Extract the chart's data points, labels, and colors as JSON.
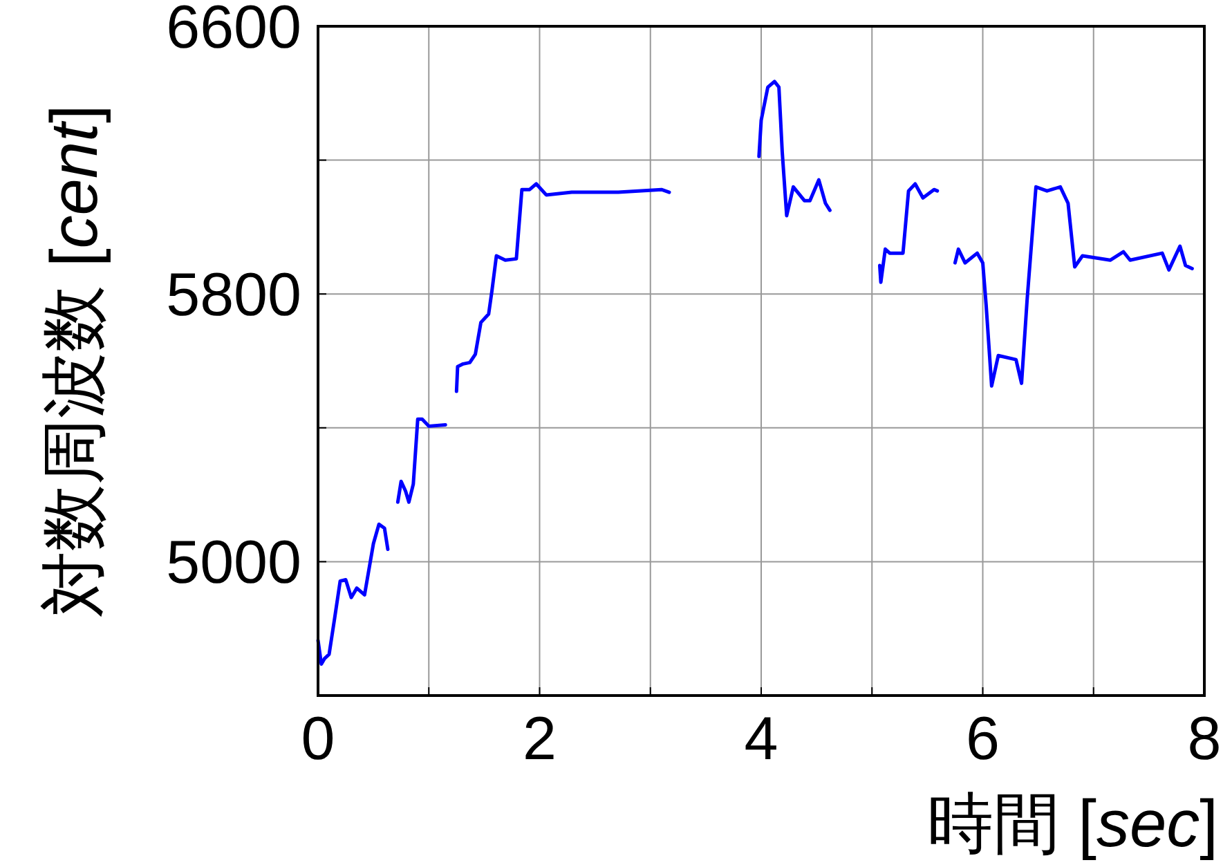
{
  "chart_data": {
    "type": "line",
    "xlabel": "時間 [sec]",
    "ylabel": "対数周波数 [cent]",
    "xlim": [
      0,
      8
    ],
    "ylim": [
      4600,
      6600
    ],
    "xticks": [
      0,
      {
        "value": 1,
        "label": null
      },
      2,
      {
        "value": 3,
        "label": null
      },
      4,
      {
        "value": 5,
        "label": null
      },
      6,
      {
        "value": 7,
        "label": null
      },
      8
    ],
    "yticks": [
      {
        "value": 5000,
        "label": "5000"
      },
      {
        "value": 5400,
        "label": null
      },
      {
        "value": 5800,
        "label": "5800"
      },
      {
        "value": 6200,
        "label": null
      },
      {
        "value": 6600,
        "label": "6600"
      }
    ],
    "grid": true,
    "marker": "none",
    "line_style": "solid",
    "series": [
      {
        "color": "#0000ff",
        "x": [
          0.0,
          0.03,
          0.06,
          0.1,
          0.15,
          0.2,
          0.25,
          0.3,
          0.35,
          0.42,
          0.5,
          0.55,
          0.6,
          0.63,
          0.67,
          0.72,
          0.75,
          0.79,
          0.82,
          0.86,
          0.9,
          0.94,
          1.0,
          1.15,
          1.2,
          1.25,
          1.26,
          1.31,
          1.37,
          1.42,
          1.47,
          1.54,
          1.57,
          1.61,
          1.69,
          1.79,
          1.81,
          1.84,
          1.91,
          1.97,
          2.06,
          2.29,
          2.71,
          3.1,
          3.17,
          3.5,
          3.98,
          4.0,
          4.06,
          4.12,
          4.16,
          4.19,
          4.23,
          4.29,
          4.39,
          4.44,
          4.52,
          4.58,
          4.62,
          4.8,
          5.07,
          5.08,
          5.12,
          5.16,
          5.28,
          5.33,
          5.39,
          5.46,
          5.56,
          5.59,
          5.67,
          5.75,
          5.78,
          5.84,
          5.95,
          6.0,
          6.03,
          6.08,
          6.14,
          6.3,
          6.35,
          6.4,
          6.48,
          6.58,
          6.7,
          6.77,
          6.83,
          6.9,
          7.15,
          7.27,
          7.33,
          7.62,
          7.68,
          7.78,
          7.83,
          7.89
        ],
        "values": [
          4765,
          4694,
          4711,
          4723,
          4831,
          4942,
          4946,
          4893,
          4921,
          4901,
          5054,
          5112,
          5100,
          5037,
          null,
          5178,
          5240,
          5211,
          5178,
          5232,
          5426,
          5426,
          5405,
          5409,
          null,
          5509,
          5583,
          5591,
          5595,
          5620,
          5715,
          5740,
          5810,
          5914,
          5901,
          5905,
          5988,
          6112,
          6112,
          6129,
          6096,
          6104,
          6104,
          6112,
          6104,
          null,
          6211,
          6319,
          6418,
          6435,
          6418,
          6224,
          6034,
          6120,
          6079,
          6079,
          6141,
          6071,
          6050,
          null,
          5885,
          5835,
          5934,
          5922,
          5922,
          6108,
          6129,
          6087,
          6112,
          6108,
          null,
          5893,
          5934,
          5893,
          5922,
          5893,
          5769,
          5525,
          5616,
          5604,
          5533,
          5781,
          6120,
          6108,
          6120,
          6071,
          5881,
          5914,
          5901,
          5926,
          5901,
          5922,
          5872,
          5943,
          5885,
          5876
        ]
      }
    ]
  }
}
